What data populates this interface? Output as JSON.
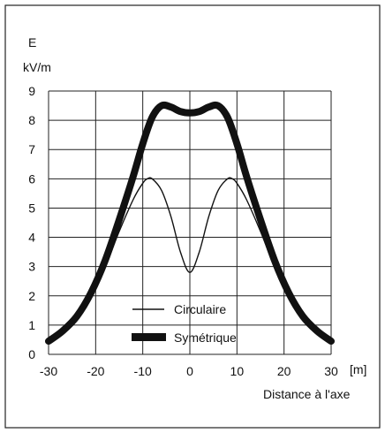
{
  "chart_data": {
    "type": "line",
    "ylabel_symbol": "E",
    "ylabel_unit": "kV/m",
    "xlabel": "Distance à l'axe",
    "x_unit": "[m]",
    "xlim": [
      -30,
      30
    ],
    "ylim": [
      0,
      9
    ],
    "x_ticks": [
      -30,
      -20,
      -10,
      0,
      10,
      20,
      30
    ],
    "x_tick_labels": [
      "-30",
      "-20",
      "-10",
      "0",
      "10",
      "20",
      "30"
    ],
    "y_ticks": [
      0,
      1,
      2,
      3,
      4,
      5,
      6,
      7,
      8,
      9
    ],
    "y_tick_labels": [
      "0",
      "1",
      "2",
      "3",
      "4",
      "5",
      "6",
      "7",
      "8",
      "9"
    ],
    "grid": true,
    "legend_position": "bottom-center",
    "series": [
      {
        "name": "Circulaire",
        "style": "thin",
        "color": "#111111",
        "x": [
          -30,
          -27,
          -24,
          -21,
          -18,
          -15,
          -12,
          -10,
          -9,
          -8,
          -6,
          -4,
          -2,
          0,
          2,
          4,
          6,
          8,
          9,
          10,
          12,
          15,
          18,
          21,
          24,
          27,
          30
        ],
        "y": [
          0.55,
          0.85,
          1.35,
          2.1,
          3.0,
          4.2,
          5.3,
          5.85,
          6.0,
          6.0,
          5.6,
          4.7,
          3.5,
          2.8,
          3.5,
          4.7,
          5.6,
          6.0,
          6.0,
          5.85,
          5.3,
          4.2,
          3.0,
          2.1,
          1.35,
          0.85,
          0.55
        ]
      },
      {
        "name": "Symétrique",
        "style": "thick",
        "color": "#111111",
        "x": [
          -30,
          -27,
          -24,
          -21,
          -18,
          -15,
          -12,
          -10,
          -8,
          -6,
          -4,
          -2,
          0,
          2,
          4,
          6,
          8,
          10,
          12,
          15,
          18,
          21,
          24,
          27,
          30
        ],
        "y": [
          0.45,
          0.8,
          1.3,
          2.1,
          3.2,
          4.6,
          6.1,
          7.2,
          8.1,
          8.5,
          8.45,
          8.3,
          8.25,
          8.3,
          8.45,
          8.5,
          8.1,
          7.2,
          6.1,
          4.6,
          3.2,
          2.1,
          1.3,
          0.8,
          0.45
        ]
      }
    ]
  }
}
